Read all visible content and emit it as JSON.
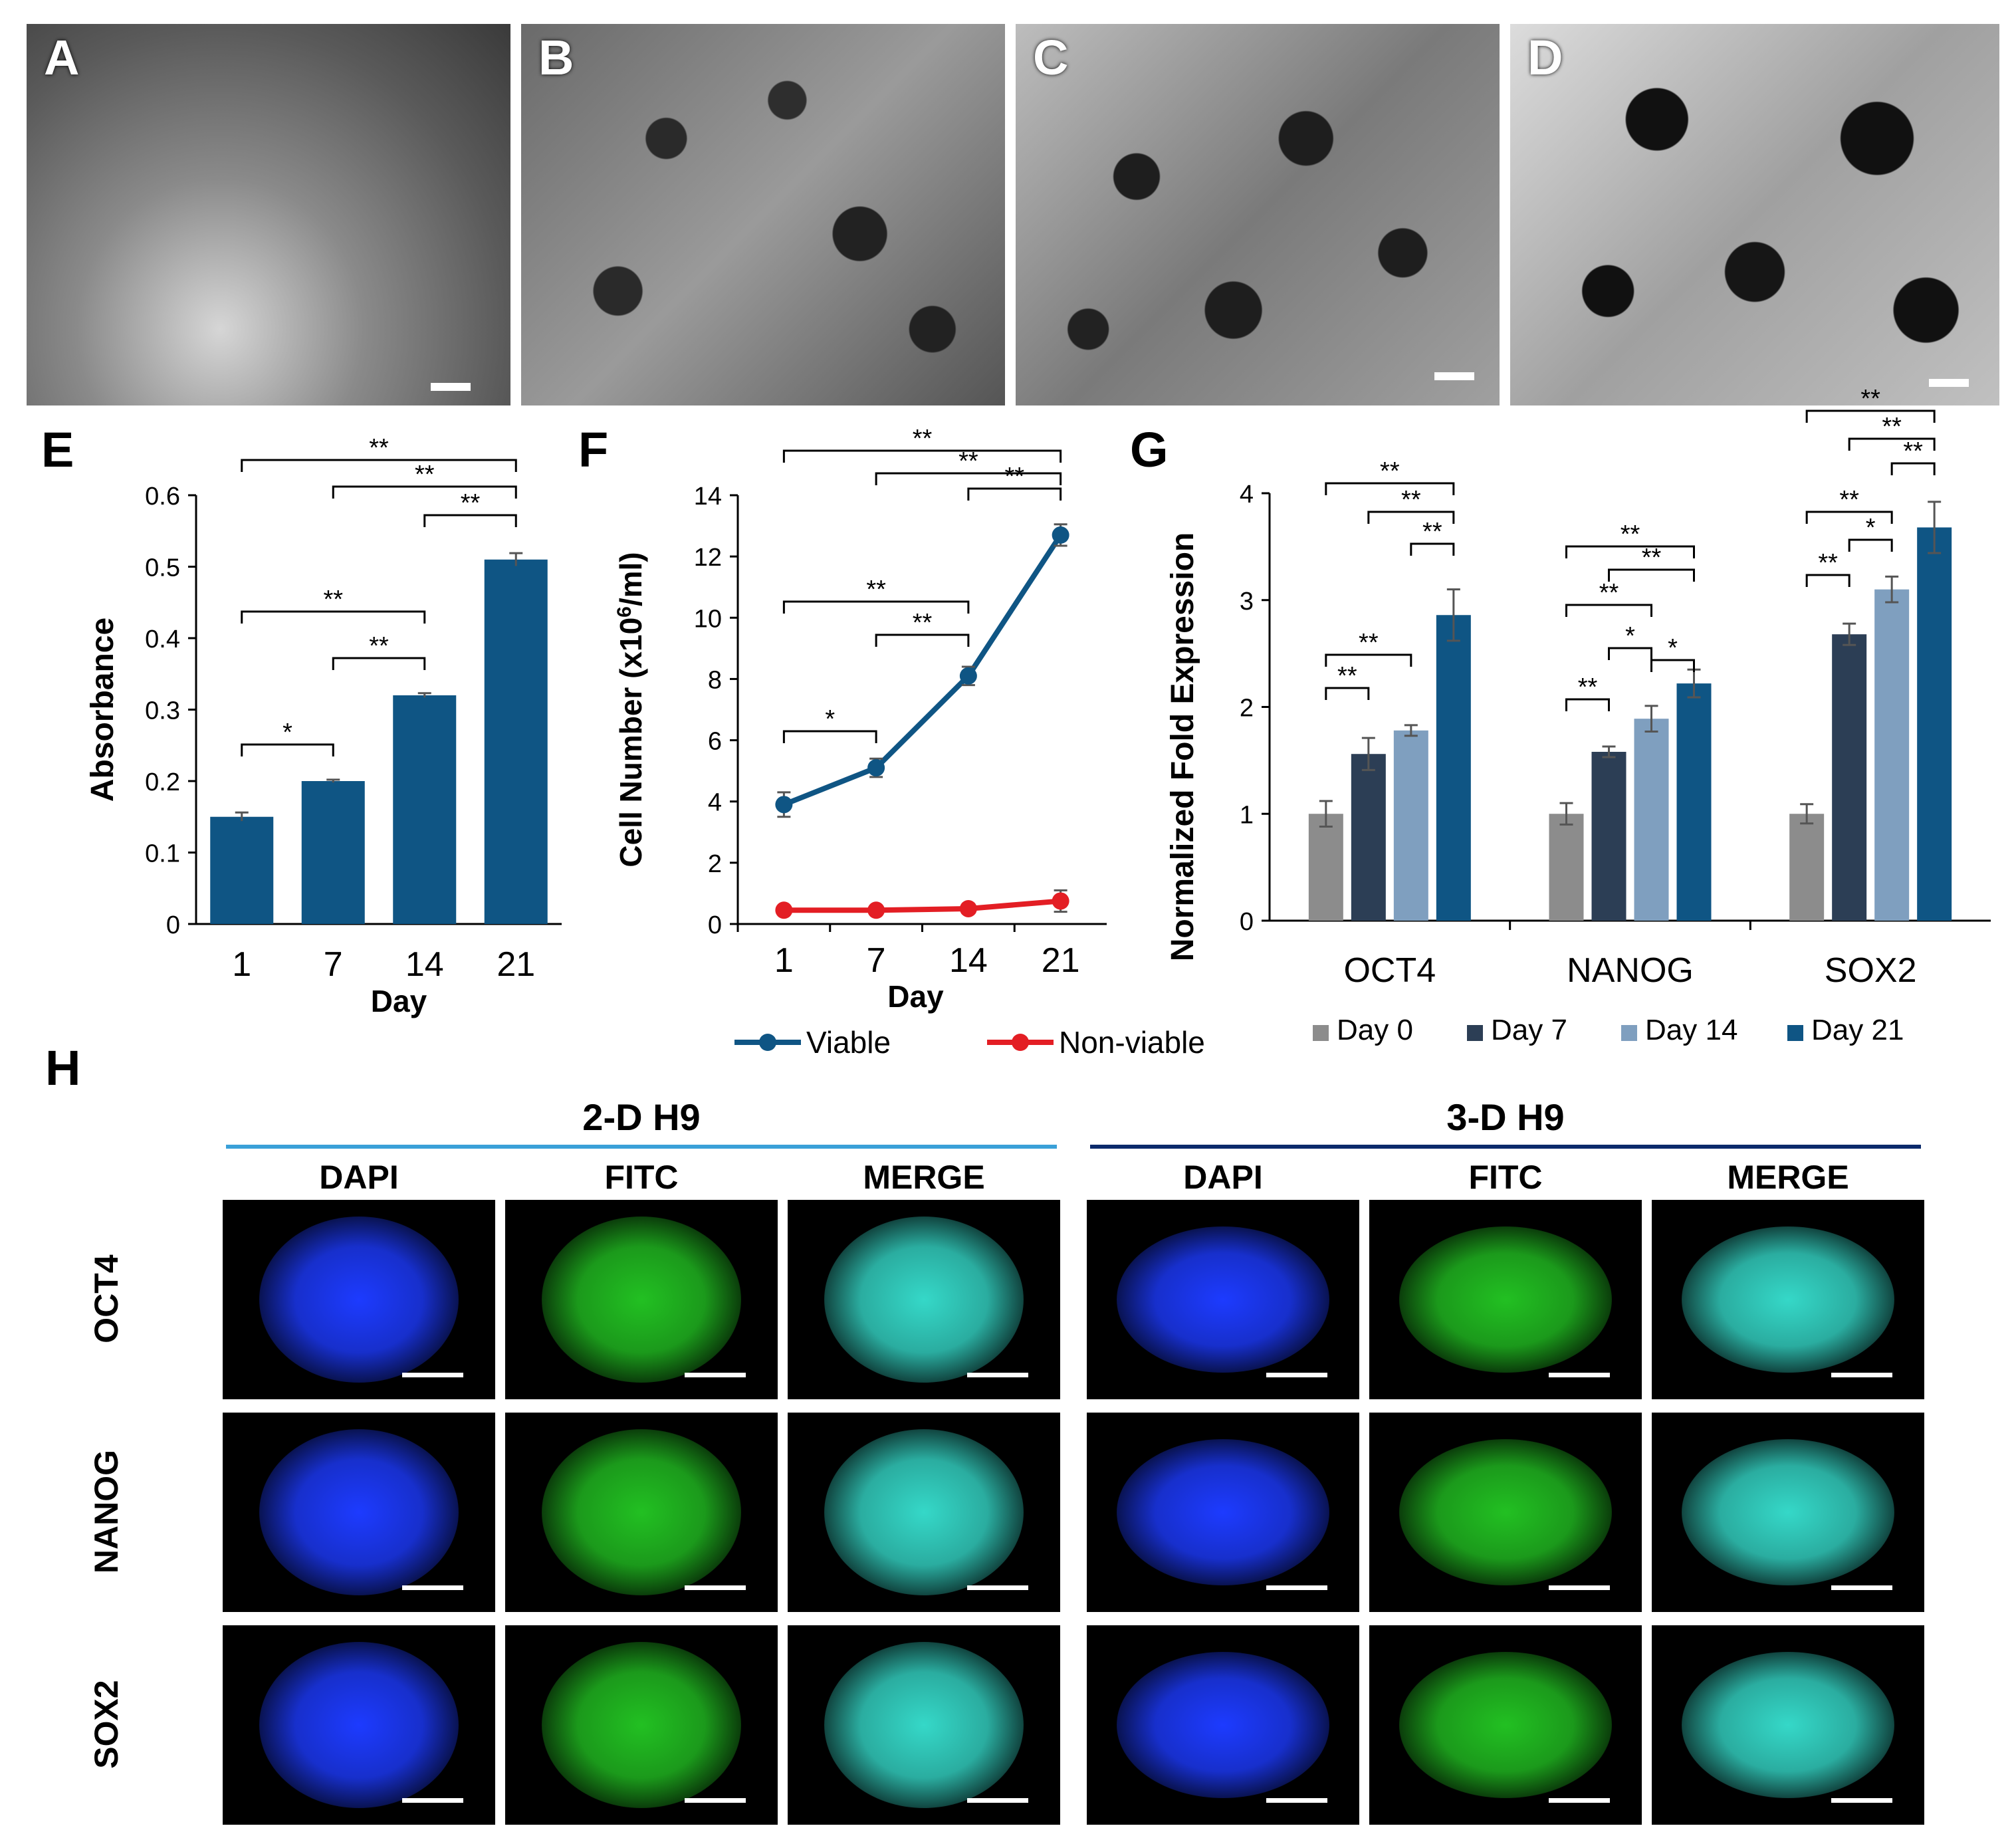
{
  "micrographs": [
    {
      "letter": "A",
      "scalebar": true
    },
    {
      "letter": "B",
      "scalebar": false
    },
    {
      "letter": "C",
      "scalebar": true
    },
    {
      "letter": "D",
      "scalebar": true
    }
  ],
  "panel_letters": {
    "E": "E",
    "F": "F",
    "G": "G",
    "H": "H"
  },
  "chart_data": [
    {
      "panel": "E",
      "type": "bar",
      "categories": [
        "1",
        "7",
        "14",
        "21"
      ],
      "values": [
        0.15,
        0.2,
        0.32,
        0.51
      ],
      "errors": [
        0.006,
        0.002,
        0.003,
        0.009
      ],
      "xlabel": "Day",
      "ylabel": "Absorbance",
      "ylim": [
        0,
        0.6
      ],
      "yticks": [
        "0",
        "0.1",
        "0.2",
        "0.3",
        "0.4",
        "0.5",
        "0.6"
      ],
      "color": "#0f5584",
      "significance": [
        {
          "from": 0,
          "to": 3,
          "label": "**"
        },
        {
          "from": 1,
          "to": 3,
          "label": "**"
        },
        {
          "from": 2,
          "to": 3,
          "label": "**"
        },
        {
          "from": 0,
          "to": 2,
          "label": "**"
        },
        {
          "from": 1,
          "to": 2,
          "label": "**"
        },
        {
          "from": 0,
          "to": 1,
          "label": "*"
        }
      ]
    },
    {
      "panel": "F",
      "type": "line",
      "x": [
        "1",
        "7",
        "14",
        "21"
      ],
      "series": [
        {
          "name": "Viable",
          "values": [
            3.9,
            5.1,
            8.1,
            12.7
          ],
          "errors": [
            0.4,
            0.3,
            0.3,
            0.35
          ],
          "color": "#0f5584"
        },
        {
          "name": "Non-viable",
          "values": [
            0.45,
            0.45,
            0.5,
            0.75
          ],
          "errors": [
            0.05,
            0.05,
            0.1,
            0.35
          ],
          "color": "#e31e24"
        }
      ],
      "xlabel": "Day",
      "ylabel": "Cell Number (x10",
      "ylabel_sup": "6",
      "ylabel_tail": "/ml)",
      "ylim": [
        0,
        14
      ],
      "yticks": [
        "0",
        "2",
        "4",
        "6",
        "8",
        "10",
        "12",
        "14"
      ],
      "legend_position": "bottom",
      "significance": [
        {
          "from": 0,
          "to": 3,
          "label": "**"
        },
        {
          "from": 1,
          "to": 3,
          "label": "**"
        },
        {
          "from": 2,
          "to": 3,
          "label": "**"
        },
        {
          "from": 0,
          "to": 2,
          "label": "**"
        },
        {
          "from": 1,
          "to": 2,
          "label": "**"
        },
        {
          "from": 0,
          "to": 1,
          "label": "*"
        }
      ]
    },
    {
      "panel": "G",
      "type": "bar",
      "categories": [
        "OCT4",
        "NANOG",
        "SOX2"
      ],
      "series": [
        {
          "name": "Day 0",
          "values": [
            1.0,
            1.0,
            1.0
          ],
          "errors": [
            0.12,
            0.1,
            0.09
          ],
          "color": "#8c8c8c"
        },
        {
          "name": "Day 7",
          "values": [
            1.56,
            1.58,
            2.68
          ],
          "errors": [
            0.15,
            0.05,
            0.1
          ],
          "color": "#2c3e55"
        },
        {
          "name": "Day 14",
          "values": [
            1.78,
            1.89,
            3.1
          ],
          "errors": [
            0.05,
            0.12,
            0.12
          ],
          "color": "#7f9fbf"
        },
        {
          "name": "Day 21",
          "values": [
            2.86,
            2.22,
            3.68
          ],
          "errors": [
            0.24,
            0.13,
            0.24
          ],
          "color": "#0f5584"
        }
      ],
      "ylabel": "Normalized Fold Expression",
      "ylim": [
        0,
        4
      ],
      "yticks": [
        "0",
        "1",
        "2",
        "3",
        "4"
      ],
      "legend_position": "bottom",
      "significance": [
        {
          "group": 0,
          "from": 0,
          "to": 3,
          "label": "**"
        },
        {
          "group": 0,
          "from": 1,
          "to": 3,
          "label": "**"
        },
        {
          "group": 0,
          "from": 2,
          "to": 3,
          "label": "**"
        },
        {
          "group": 0,
          "from": 0,
          "to": 2,
          "label": "**"
        },
        {
          "group": 0,
          "from": 0,
          "to": 1,
          "label": "**"
        },
        {
          "group": 1,
          "from": 0,
          "to": 3,
          "label": "**"
        },
        {
          "group": 1,
          "from": 1,
          "to": 3,
          "label": "**"
        },
        {
          "group": 1,
          "from": 0,
          "to": 2,
          "label": "**"
        },
        {
          "group": 1,
          "from": 1,
          "to": 2,
          "label": "*"
        },
        {
          "group": 1,
          "from": 2,
          "to": 3,
          "label": "*"
        },
        {
          "group": 1,
          "from": 0,
          "to": 1,
          "label": "**"
        },
        {
          "group": 2,
          "from": 0,
          "to": 3,
          "label": "**"
        },
        {
          "group": 2,
          "from": 1,
          "to": 3,
          "label": "**"
        },
        {
          "group": 2,
          "from": 2,
          "to": 3,
          "label": "**"
        },
        {
          "group": 2,
          "from": 0,
          "to": 2,
          "label": "**"
        },
        {
          "group": 2,
          "from": 1,
          "to": 2,
          "label": "*"
        },
        {
          "group": 2,
          "from": 0,
          "to": 1,
          "label": "**"
        }
      ]
    }
  ],
  "panel_h": {
    "groups": [
      {
        "title": "2-D H9",
        "line_color": "#3aa0d8"
      },
      {
        "title": "3-D H9",
        "line_color": "#0b2a6b"
      }
    ],
    "columns": [
      "DAPI",
      "FITC",
      "MERGE"
    ],
    "rows": [
      "OCT4",
      "NANOG",
      "SOX2"
    ],
    "channel_colors": {
      "DAPI": "#1d3bff",
      "FITC": "#22c022",
      "MERGE": "#35d8c8"
    }
  }
}
